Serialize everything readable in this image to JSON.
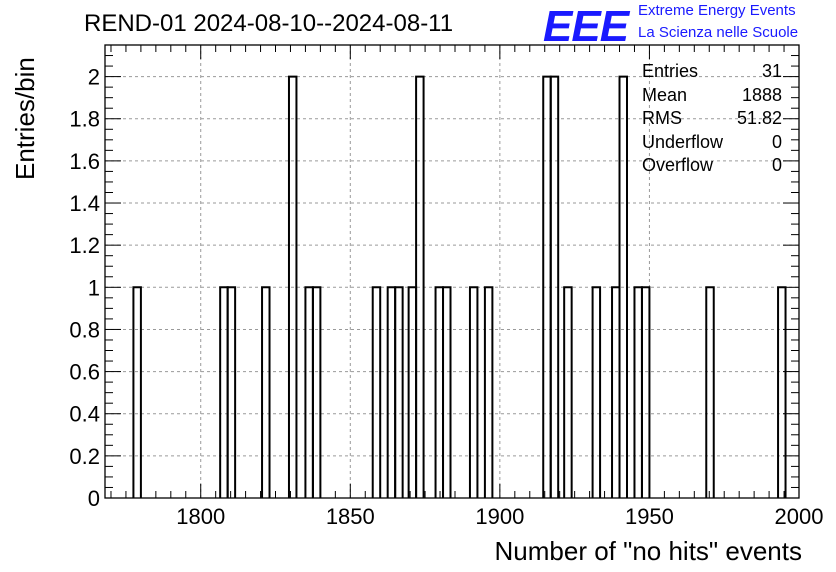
{
  "title": "REND-01 2024-08-10--2024-08-11",
  "logo": {
    "mark": "EEE",
    "line1": "Extreme Energy Events",
    "line2": "La Scienza nelle Scuole",
    "color": "#1a1aff"
  },
  "stats": [
    {
      "label": "Entries",
      "value": "31"
    },
    {
      "label": "Mean",
      "value": "1888"
    },
    {
      "label": "RMS",
      "value": "51.82"
    },
    {
      "label": "Underflow",
      "value": "0"
    },
    {
      "label": "Overflow",
      "value": "0"
    }
  ],
  "chart_data": {
    "type": "bar",
    "title": "REND-01 2024-08-10--2024-08-11",
    "xlabel": "Number of \"no hits\" events",
    "ylabel": "Entries/bin",
    "xlim": [
      1768,
      2000
    ],
    "ylim": [
      0,
      2.15
    ],
    "bin_width": 2.5,
    "x_ticks": [
      1800,
      1850,
      1900,
      1950,
      2000
    ],
    "y_ticks": [
      "0",
      "0.2",
      "0.4",
      "0.6",
      "0.8",
      "1",
      "1.2",
      "1.4",
      "1.6",
      "1.8",
      "2"
    ],
    "grid": true,
    "bins": [
      {
        "x": 1777.5,
        "value": 1
      },
      {
        "x": 1806.5,
        "value": 1
      },
      {
        "x": 1809.0,
        "value": 1
      },
      {
        "x": 1820.5,
        "value": 1
      },
      {
        "x": 1829.5,
        "value": 2
      },
      {
        "x": 1835.0,
        "value": 1
      },
      {
        "x": 1837.5,
        "value": 1
      },
      {
        "x": 1857.5,
        "value": 1
      },
      {
        "x": 1862.5,
        "value": 1
      },
      {
        "x": 1865.0,
        "value": 1
      },
      {
        "x": 1869.5,
        "value": 1
      },
      {
        "x": 1872.0,
        "value": 2
      },
      {
        "x": 1878.5,
        "value": 1
      },
      {
        "x": 1881.0,
        "value": 1
      },
      {
        "x": 1890.0,
        "value": 1
      },
      {
        "x": 1895.0,
        "value": 1
      },
      {
        "x": 1914.5,
        "value": 2
      },
      {
        "x": 1917.0,
        "value": 2
      },
      {
        "x": 1921.5,
        "value": 1
      },
      {
        "x": 1931.0,
        "value": 1
      },
      {
        "x": 1937.5,
        "value": 1
      },
      {
        "x": 1940.0,
        "value": 2
      },
      {
        "x": 1945.0,
        "value": 1
      },
      {
        "x": 1947.5,
        "value": 1
      },
      {
        "x": 1969.0,
        "value": 1
      },
      {
        "x": 1993.0,
        "value": 1
      }
    ]
  }
}
